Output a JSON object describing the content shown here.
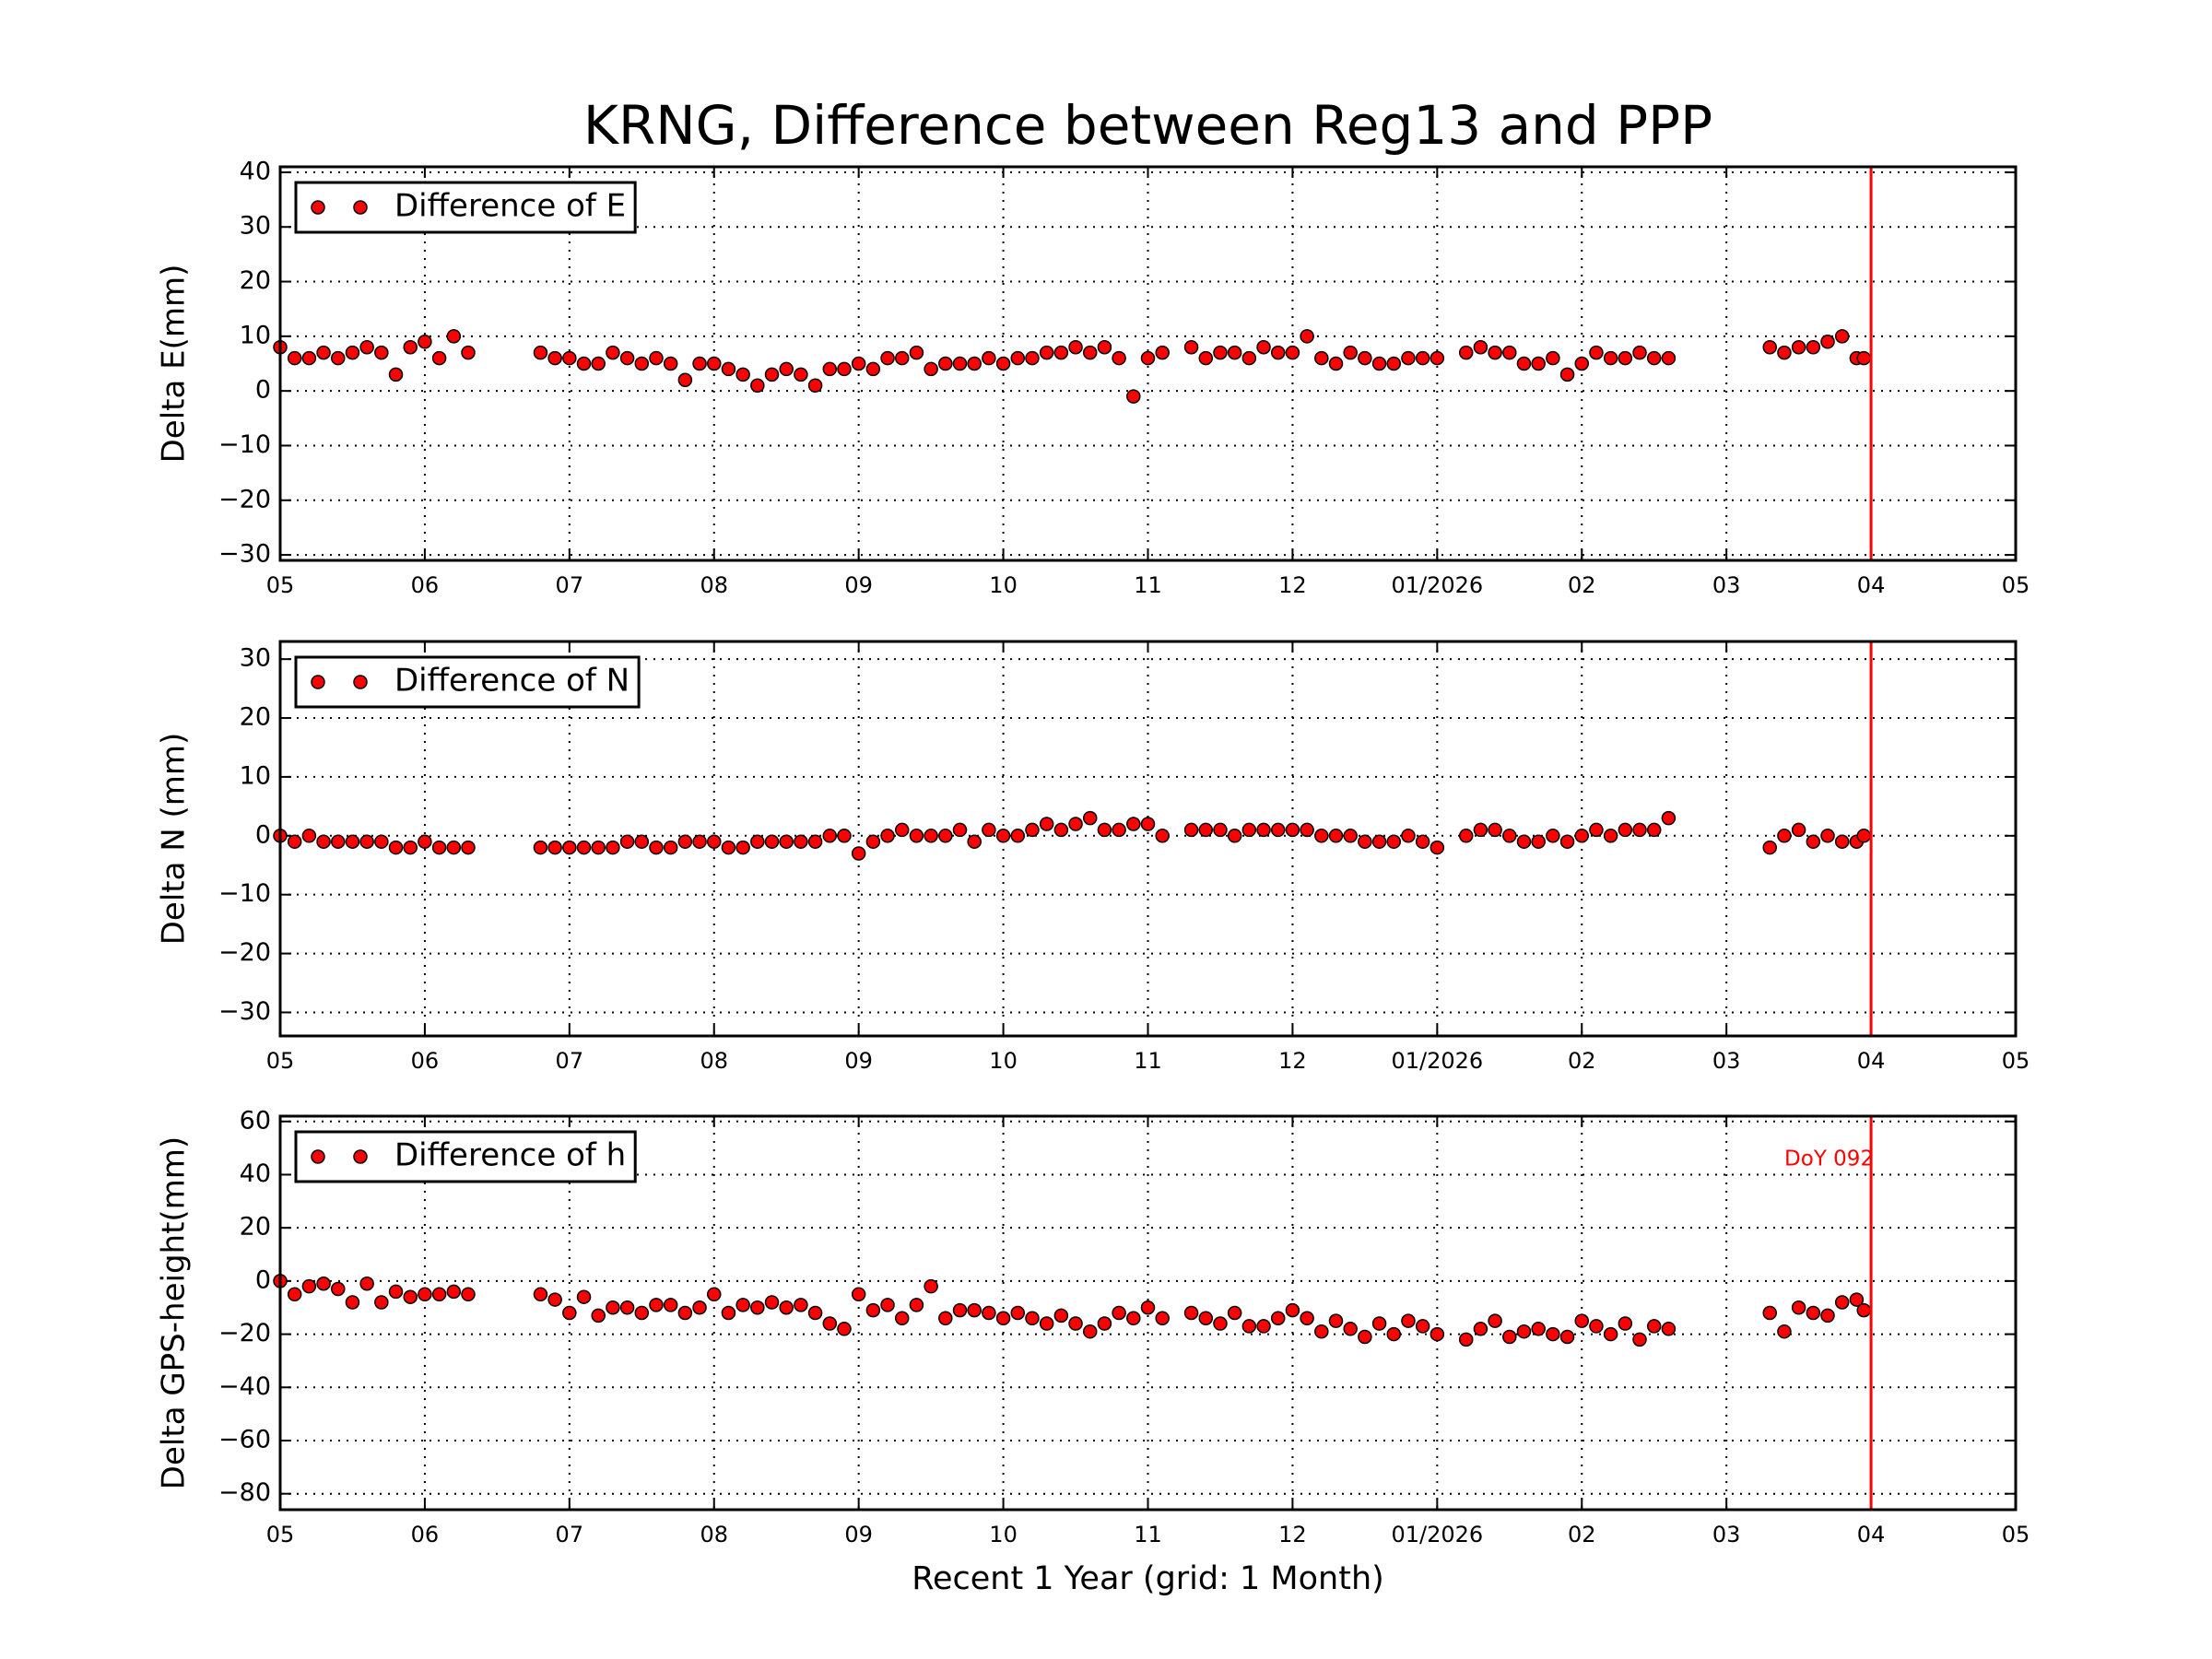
{
  "chart_data": [
    {
      "type": "scatter",
      "title": "KRNG, Difference between Reg13 and PPP",
      "ylabel": "Delta E(mm)",
      "legend": "upper left",
      "grid": true,
      "vline": 11,
      "vline_color": "#ff0000",
      "xlim": [
        0,
        12
      ],
      "xticks": [
        {
          "value": 0,
          "label": "05"
        },
        {
          "value": 1,
          "label": "06"
        },
        {
          "value": 2,
          "label": "07"
        },
        {
          "value": 3,
          "label": "08"
        },
        {
          "value": 4,
          "label": "09"
        },
        {
          "value": 5,
          "label": "10"
        },
        {
          "value": 6,
          "label": "11"
        },
        {
          "value": 7,
          "label": "12"
        },
        {
          "value": 8,
          "label": "01/2026"
        },
        {
          "value": 9,
          "label": "02"
        },
        {
          "value": 10,
          "label": "03"
        },
        {
          "value": 11,
          "label": "04"
        },
        {
          "value": 12,
          "label": "05"
        }
      ],
      "ylim": [
        -31,
        41
      ],
      "yticks": [
        {
          "value": -30,
          "label": "−30"
        },
        {
          "value": -20,
          "label": "−20"
        },
        {
          "value": -10,
          "label": "−10"
        },
        0,
        10,
        20,
        30,
        40
      ],
      "x": [
        0,
        0.1,
        0.2,
        0.3,
        0.4,
        0.5,
        0.6,
        0.7,
        0.8,
        0.9,
        1,
        1.1,
        1.2,
        1.3,
        1.8,
        1.9,
        2,
        2.1,
        2.2,
        2.3,
        2.4,
        2.5,
        2.6,
        2.7,
        2.8,
        2.9,
        3,
        3.1,
        3.2,
        3.3,
        3.4,
        3.5,
        3.6,
        3.7,
        3.8,
        3.9,
        4,
        4.1,
        4.2,
        4.3,
        4.4,
        4.5,
        4.6,
        4.7,
        4.8,
        4.9,
        5,
        5.1,
        5.2,
        5.3,
        5.4,
        5.5,
        5.6,
        5.7,
        5.8,
        5.9,
        6,
        6.1,
        6.3,
        6.4,
        6.5,
        6.6,
        6.7,
        6.8,
        6.9,
        7,
        7.1,
        7.2,
        7.3,
        7.4,
        7.5,
        7.6,
        7.7,
        7.8,
        7.9,
        8,
        8.2,
        8.3,
        8.4,
        8.5,
        8.6,
        8.7,
        8.8,
        8.9,
        9,
        9.1,
        9.2,
        9.3,
        9.4,
        9.5,
        9.6,
        10.3,
        10.4,
        10.5,
        10.6,
        10.7,
        10.8,
        10.9,
        10.95
      ],
      "series": [
        {
          "name": "Difference of E",
          "color": "#ff0000",
          "values": [
            8,
            6,
            6,
            7,
            6,
            7,
            8,
            7,
            3,
            8,
            9,
            6,
            10,
            7,
            7,
            6,
            6,
            5,
            5,
            7,
            6,
            5,
            6,
            5,
            2,
            5,
            5,
            4,
            3,
            1,
            3,
            4,
            3,
            1,
            4,
            4,
            5,
            4,
            6,
            6,
            7,
            4,
            5,
            5,
            5,
            6,
            5,
            6,
            6,
            7,
            7,
            8,
            7,
            8,
            6,
            -1,
            6,
            7,
            8,
            6,
            7,
            7,
            6,
            8,
            7,
            7,
            10,
            6,
            5,
            7,
            6,
            5,
            5,
            6,
            6,
            6,
            7,
            8,
            7,
            7,
            5,
            5,
            6,
            3,
            5,
            7,
            6,
            6,
            7,
            6,
            6,
            8,
            7,
            8,
            8,
            9,
            10,
            6,
            6
          ]
        }
      ]
    },
    {
      "type": "scatter",
      "ylabel": "Delta N (mm)",
      "legend": "upper left",
      "grid": true,
      "vline": 11,
      "vline_color": "#ff0000",
      "xlim": [
        0,
        12
      ],
      "xticks": [
        {
          "value": 0,
          "label": "05"
        },
        {
          "value": 1,
          "label": "06"
        },
        {
          "value": 2,
          "label": "07"
        },
        {
          "value": 3,
          "label": "08"
        },
        {
          "value": 4,
          "label": "09"
        },
        {
          "value": 5,
          "label": "10"
        },
        {
          "value": 6,
          "label": "11"
        },
        {
          "value": 7,
          "label": "12"
        },
        {
          "value": 8,
          "label": "01/2026"
        },
        {
          "value": 9,
          "label": "02"
        },
        {
          "value": 10,
          "label": "03"
        },
        {
          "value": 11,
          "label": "04"
        },
        {
          "value": 12,
          "label": "05"
        }
      ],
      "ylim": [
        -34,
        33
      ],
      "yticks": [
        {
          "value": -30,
          "label": "−30"
        },
        {
          "value": -20,
          "label": "−20"
        },
        {
          "value": -10,
          "label": "−10"
        },
        0,
        10,
        20,
        30
      ],
      "x": [
        0,
        0.1,
        0.2,
        0.3,
        0.4,
        0.5,
        0.6,
        0.7,
        0.8,
        0.9,
        1,
        1.1,
        1.2,
        1.3,
        1.8,
        1.9,
        2,
        2.1,
        2.2,
        2.3,
        2.4,
        2.5,
        2.6,
        2.7,
        2.8,
        2.9,
        3,
        3.1,
        3.2,
        3.3,
        3.4,
        3.5,
        3.6,
        3.7,
        3.8,
        3.9,
        4,
        4.1,
        4.2,
        4.3,
        4.4,
        4.5,
        4.6,
        4.7,
        4.8,
        4.9,
        5,
        5.1,
        5.2,
        5.3,
        5.4,
        5.5,
        5.6,
        5.7,
        5.8,
        5.9,
        6,
        6.1,
        6.3,
        6.4,
        6.5,
        6.6,
        6.7,
        6.8,
        6.9,
        7,
        7.1,
        7.2,
        7.3,
        7.4,
        7.5,
        7.6,
        7.7,
        7.8,
        7.9,
        8,
        8.2,
        8.3,
        8.4,
        8.5,
        8.6,
        8.7,
        8.8,
        8.9,
        9,
        9.1,
        9.2,
        9.3,
        9.4,
        9.5,
        9.6,
        10.3,
        10.4,
        10.5,
        10.6,
        10.7,
        10.8,
        10.9,
        10.95
      ],
      "series": [
        {
          "name": "Difference of N",
          "color": "#ff0000",
          "values": [
            0,
            -1,
            0,
            -1,
            -1,
            -1,
            -1,
            -1,
            -2,
            -2,
            -1,
            -2,
            -2,
            -2,
            -2,
            -2,
            -2,
            -2,
            -2,
            -2,
            -1,
            -1,
            -2,
            -2,
            -1,
            -1,
            -1,
            -2,
            -2,
            -1,
            -1,
            -1,
            -1,
            -1,
            0,
            0,
            -3,
            -1,
            0,
            1,
            0,
            0,
            0,
            1,
            -1,
            1,
            0,
            0,
            1,
            2,
            1,
            2,
            3,
            1,
            1,
            2,
            2,
            0,
            1,
            1,
            1,
            0,
            1,
            1,
            1,
            1,
            1,
            0,
            0,
            0,
            -1,
            -1,
            -1,
            0,
            -1,
            -2,
            0,
            1,
            1,
            0,
            -1,
            -1,
            0,
            -1,
            0,
            1,
            0,
            1,
            1,
            1,
            3,
            -2,
            0,
            1,
            -1,
            0,
            -1,
            -1,
            0
          ]
        }
      ]
    },
    {
      "type": "scatter",
      "ylabel": "Delta GPS-height(mm)",
      "xlabel": "Recent 1 Year (grid: 1 Month)",
      "annotation": "DoY 092",
      "legend": "upper left",
      "grid": true,
      "vline": 11,
      "vline_color": "#ff0000",
      "xlim": [
        0,
        12
      ],
      "xticks": [
        {
          "value": 0,
          "label": "05"
        },
        {
          "value": 1,
          "label": "06"
        },
        {
          "value": 2,
          "label": "07"
        },
        {
          "value": 3,
          "label": "08"
        },
        {
          "value": 4,
          "label": "09"
        },
        {
          "value": 5,
          "label": "10"
        },
        {
          "value": 6,
          "label": "11"
        },
        {
          "value": 7,
          "label": "12"
        },
        {
          "value": 8,
          "label": "01/2026"
        },
        {
          "value": 9,
          "label": "02"
        },
        {
          "value": 10,
          "label": "03"
        },
        {
          "value": 11,
          "label": "04"
        },
        {
          "value": 12,
          "label": "05"
        }
      ],
      "ylim": [
        -86,
        62
      ],
      "yticks": [
        {
          "value": -80,
          "label": "−80"
        },
        {
          "value": -60,
          "label": "−60"
        },
        {
          "value": -40,
          "label": "−40"
        },
        {
          "value": -20,
          "label": "−20"
        },
        0,
        20,
        40,
        60
      ],
      "x": [
        0,
        0.1,
        0.2,
        0.3,
        0.4,
        0.5,
        0.6,
        0.7,
        0.8,
        0.9,
        1,
        1.1,
        1.2,
        1.3,
        1.8,
        1.9,
        2,
        2.1,
        2.2,
        2.3,
        2.4,
        2.5,
        2.6,
        2.7,
        2.8,
        2.9,
        3,
        3.1,
        3.2,
        3.3,
        3.4,
        3.5,
        3.6,
        3.7,
        3.8,
        3.9,
        4,
        4.1,
        4.2,
        4.3,
        4.4,
        4.5,
        4.6,
        4.7,
        4.8,
        4.9,
        5,
        5.1,
        5.2,
        5.3,
        5.4,
        5.5,
        5.6,
        5.7,
        5.8,
        5.9,
        6,
        6.1,
        6.3,
        6.4,
        6.5,
        6.6,
        6.7,
        6.8,
        6.9,
        7,
        7.1,
        7.2,
        7.3,
        7.4,
        7.5,
        7.6,
        7.7,
        7.8,
        7.9,
        8,
        8.2,
        8.3,
        8.4,
        8.5,
        8.6,
        8.7,
        8.8,
        8.9,
        9,
        9.1,
        9.2,
        9.3,
        9.4,
        9.5,
        9.6,
        10.3,
        10.4,
        10.5,
        10.6,
        10.7,
        10.8,
        10.9,
        10.95
      ],
      "series": [
        {
          "name": "Difference of h",
          "color": "#ff0000",
          "values": [
            0,
            -5,
            -2,
            -1,
            -3,
            -8,
            -1,
            -8,
            -4,
            -6,
            -5,
            -5,
            -4,
            -5,
            -5,
            -7,
            -12,
            -6,
            -13,
            -10,
            -10,
            -12,
            -9,
            -9,
            -12,
            -10,
            -5,
            -12,
            -9,
            -10,
            -8,
            -10,
            -9,
            -12,
            -16,
            -18,
            -5,
            -11,
            -9,
            -14,
            -9,
            -2,
            -14,
            -11,
            -11,
            -12,
            -14,
            -12,
            -14,
            -16,
            -13,
            -16,
            -19,
            -16,
            -12,
            -14,
            -10,
            -14,
            -12,
            -14,
            -16,
            -12,
            -17,
            -17,
            -14,
            -11,
            -14,
            -19,
            -15,
            -18,
            -21,
            -16,
            -20,
            -15,
            -17,
            -20,
            -22,
            -18,
            -15,
            -21,
            -19,
            -18,
            -20,
            -21,
            -15,
            -17,
            -20,
            -16,
            -22,
            -17,
            -18,
            -12,
            -19,
            -10,
            -12,
            -13,
            -8,
            -7,
            -11
          ]
        }
      ]
    }
  ]
}
